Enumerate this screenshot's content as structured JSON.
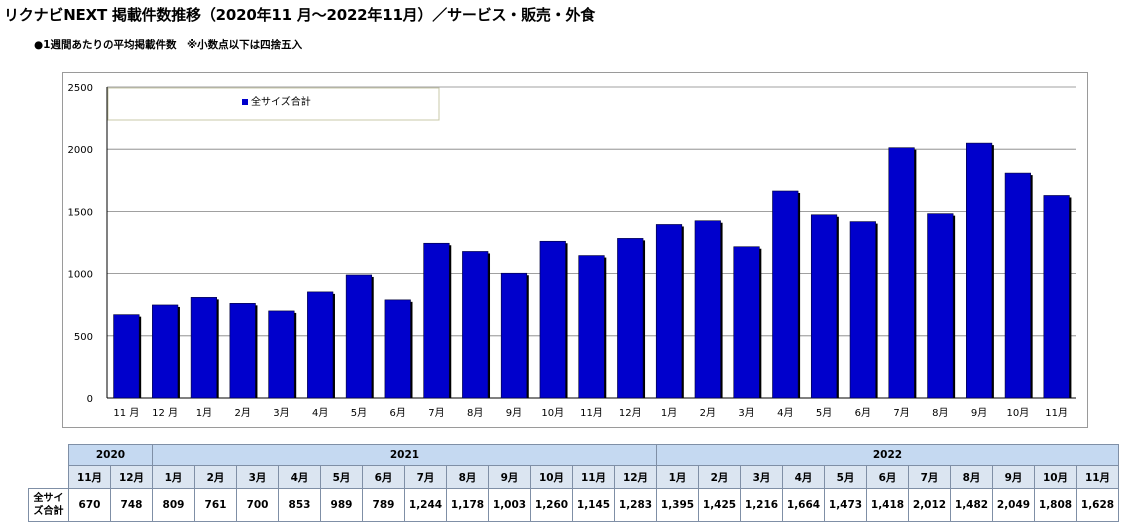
{
  "title": "リクナビNEXT 掲載件数推移（2020年11 月～2022年11月）／サービス・販売・外食",
  "subtitle": "●1週間あたりの平均掲載件数　※小数点以下は四捨五入",
  "colors": {
    "bar": "#0000cc",
    "bar_shadow": "#000000",
    "grid": "#808080",
    "table_header": "#c5d9f1",
    "table_month": "#dbe5f1"
  },
  "chart_data": {
    "type": "bar",
    "categories": [
      "11 月",
      "12 月",
      "1月",
      "2月",
      "3月",
      "4月",
      "5月",
      "6月",
      "7月",
      "8月",
      "9月",
      "10月",
      "11月",
      "12月",
      "1月",
      "2月",
      "3月",
      "4月",
      "5月",
      "6月",
      "7月",
      "8月",
      "9月",
      "10月",
      "11月"
    ],
    "series": [
      {
        "name": "全サイズ合計",
        "values": [
          670,
          748,
          809,
          761,
          700,
          853,
          989,
          789,
          1244,
          1178,
          1003,
          1260,
          1145,
          1283,
          1395,
          1425,
          1216,
          1664,
          1473,
          1418,
          2012,
          1482,
          2049,
          1808,
          1628
        ]
      }
    ],
    "ylim": [
      0,
      2500
    ],
    "yticks": [
      "0",
      "500",
      "1000",
      "1500",
      "2000",
      "2500"
    ],
    "ytick_values": [
      0,
      500,
      1000,
      1500,
      2000,
      2500
    ],
    "grid": true,
    "legend_position": "top-left"
  },
  "table": {
    "years": [
      {
        "label": "2020",
        "span": 2
      },
      {
        "label": "2021",
        "span": 12
      },
      {
        "label": "2022",
        "span": 11
      }
    ],
    "months": [
      "11月",
      "12月",
      "1月",
      "2月",
      "3月",
      "4月",
      "5月",
      "6月",
      "7月",
      "8月",
      "9月",
      "10月",
      "11月",
      "12月",
      "1月",
      "2月",
      "3月",
      "4月",
      "5月",
      "6月",
      "7月",
      "8月",
      "9月",
      "10月",
      "11月"
    ],
    "row_label": "全サイズ合計",
    "values": [
      "670",
      "748",
      "809",
      "761",
      "700",
      "853",
      "989",
      "789",
      "1,244",
      "1,178",
      "1,003",
      "1,260",
      "1,145",
      "1,283",
      "1,395",
      "1,425",
      "1,216",
      "1,664",
      "1,473",
      "1,418",
      "2,012",
      "1,482",
      "2,049",
      "1,808",
      "1,628"
    ]
  }
}
